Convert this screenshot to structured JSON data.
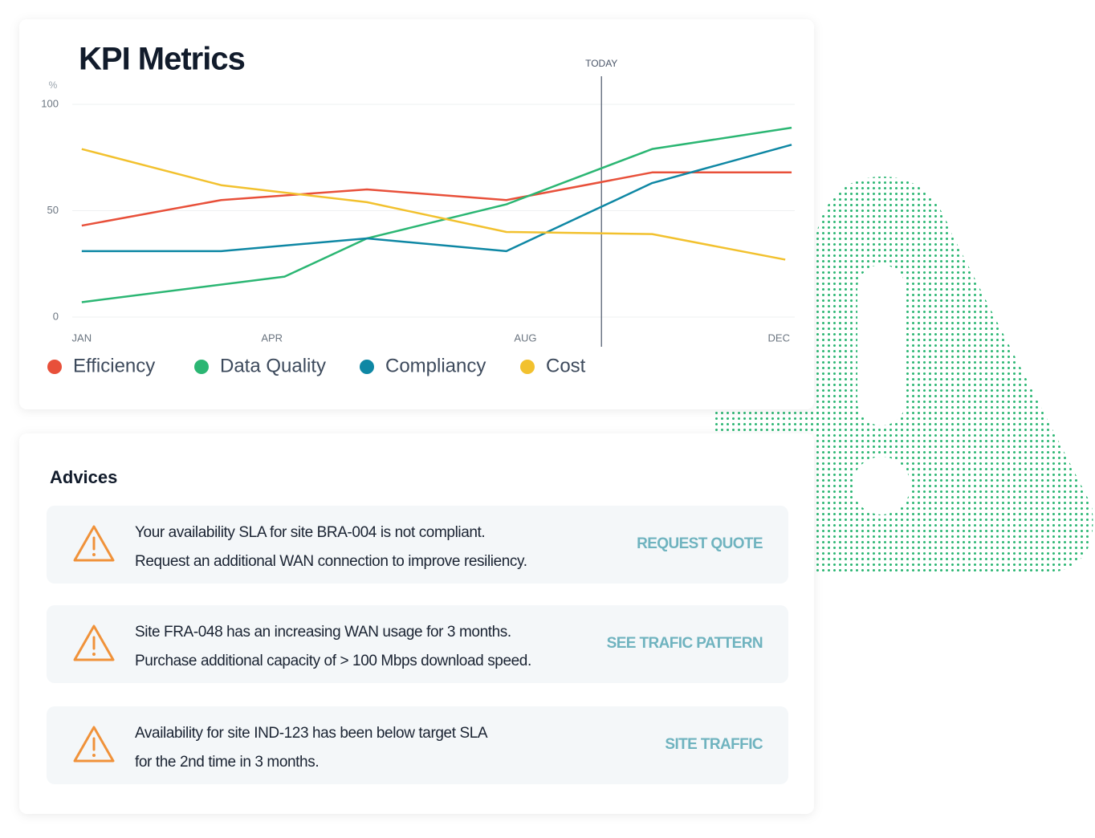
{
  "chart_data": {
    "type": "line",
    "title": "KPI Metrics",
    "y_label": "%",
    "xlim": [
      0.85,
      12.25
    ],
    "xticks": [
      {
        "value": 1,
        "label": "JAN"
      },
      {
        "value": 4,
        "label": "APR"
      },
      {
        "value": 8,
        "label": "AUG"
      },
      {
        "value": 12,
        "label": "DEC"
      }
    ],
    "ylim": [
      0,
      100
    ],
    "yticks": [
      0,
      50,
      100
    ],
    "grid": true,
    "today": {
      "label": "TODAY",
      "x": 9.2
    },
    "series": [
      {
        "name": "Efficiency",
        "color": "#e8503a",
        "x": [
          1,
          3.2,
          5.5,
          7.7,
          10,
          12.2
        ],
        "values": [
          43,
          55,
          60,
          55,
          68,
          68
        ]
      },
      {
        "name": "Data Quality",
        "color": "#2bb673",
        "x": [
          1,
          4.2,
          5.5,
          7.7,
          10,
          12.2
        ],
        "values": [
          7,
          19,
          37,
          53,
          79,
          89
        ]
      },
      {
        "name": "Compliancy",
        "color": "#0e87a4",
        "x": [
          1,
          3.2,
          5.5,
          7.7,
          10,
          12.2
        ],
        "values": [
          31,
          31,
          37,
          31,
          63,
          81
        ]
      },
      {
        "name": "Cost",
        "color": "#f2c12e",
        "x": [
          1,
          3.2,
          5.5,
          7.7,
          10,
          12.1
        ],
        "values": [
          79,
          62,
          54,
          40,
          39,
          27
        ]
      }
    ]
  },
  "advices": {
    "title": "Advices",
    "items": [
      {
        "lines": [
          "Your availability SLA for site BRA-004 is not compliant.",
          "Request an additional WAN connection to improve resiliency."
        ],
        "action": "REQUEST QUOTE"
      },
      {
        "lines": [
          "Site FRA-048 has an increasing WAN usage for 3 months.",
          "Purchase  additional capacity of > 100 Mbps download speed."
        ],
        "action": "SEE TRAFIC PATTERN"
      },
      {
        "lines": [
          "Availability for site IND-123 has been below target SLA",
          "for the 2nd time in 3 months."
        ],
        "action": "SITE TRAFFIC"
      }
    ]
  }
}
